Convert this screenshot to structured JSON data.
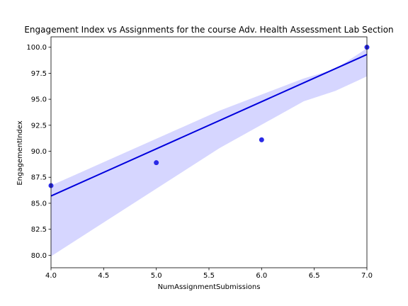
{
  "chart_data": {
    "type": "scatter",
    "title": "Engagement Index vs Assignments for the course Adv. Health Assessment Lab Section",
    "xlabel": "NumAssignmentSubmissions",
    "ylabel": "EngagementIndex",
    "xlim": [
      4.0,
      7.0
    ],
    "ylim": [
      78.8,
      101.0
    ],
    "x_ticks": [
      "4.0",
      "4.5",
      "5.0",
      "5.5",
      "6.0",
      "6.5",
      "7.0"
    ],
    "y_ticks": [
      "80.0",
      "82.5",
      "85.0",
      "87.5",
      "90.0",
      "92.5",
      "95.0",
      "97.5",
      "100.0"
    ],
    "grid": false,
    "legend": "none",
    "points": [
      {
        "x": 4,
        "y": 86.7
      },
      {
        "x": 5,
        "y": 88.9
      },
      {
        "x": 6,
        "y": 91.1
      },
      {
        "x": 7,
        "y": 100.0
      }
    ],
    "regression_line": {
      "x": [
        4,
        7
      ],
      "y": [
        85.7,
        99.3
      ]
    },
    "confidence_band": {
      "x": [
        4.0,
        5.6,
        6.4,
        6.7,
        7.0
      ],
      "lower": [
        79.9,
        90.3,
        94.8,
        95.8,
        97.2
      ],
      "upper": [
        86.7,
        93.9,
        97.0,
        97.9,
        99.9
      ]
    },
    "colors": {
      "points": "#2a2ae6",
      "line": "#0000dd",
      "band": "#d6d6ff"
    }
  }
}
